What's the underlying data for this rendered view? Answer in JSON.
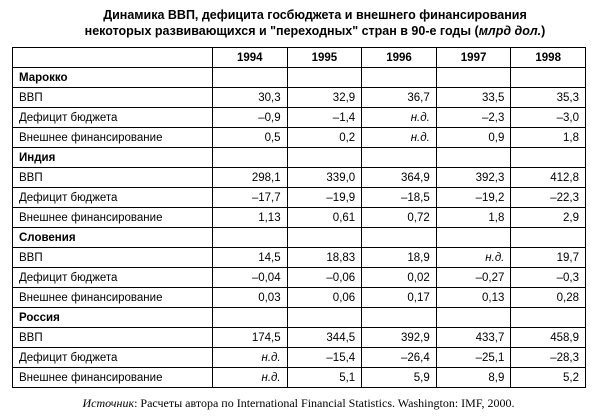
{
  "title": {
    "line1": "Динамика ВВП, дефицита госбюджета и внешнего финансирования",
    "line2_prefix": "некоторых развивающихся и \"переходных\" стран в 90-е годы (",
    "unit": "млрд дол.",
    "line2_suffix": ")"
  },
  "table": {
    "years": [
      "1994",
      "1995",
      "1996",
      "1997",
      "1998"
    ],
    "groups": [
      {
        "country": "Марокко",
        "rows": [
          {
            "label": "ВВП",
            "values": [
              "30,3",
              "32,9",
              "36,7",
              "33,5",
              "35,3"
            ]
          },
          {
            "label": "Дефицит бюджета",
            "values": [
              "–0,9",
              "–1,4",
              "н.д.",
              "–2,3",
              "–3,0"
            ]
          },
          {
            "label": "Внешнее финансирование",
            "values": [
              "0,5",
              "0,2",
              "н.д.",
              "0,9",
              "1,8"
            ]
          }
        ]
      },
      {
        "country": "Индия",
        "rows": [
          {
            "label": "ВВП",
            "values": [
              "298,1",
              "339,0",
              "364,9",
              "392,3",
              "412,8"
            ]
          },
          {
            "label": "Дефицит бюджета",
            "values": [
              "–17,7",
              "–19,9",
              "–18,5",
              "–19,2",
              "–22,3"
            ]
          },
          {
            "label": "Внешнее финансирование",
            "values": [
              "1,13",
              "0,61",
              "0,72",
              "1,8",
              "2,9"
            ]
          }
        ]
      },
      {
        "country": "Словения",
        "rows": [
          {
            "label": "ВВП",
            "values": [
              "14,5",
              "18,83",
              "18,9",
              "н.д.",
              "19,7"
            ]
          },
          {
            "label": "Дефицит бюджета",
            "values": [
              "–0,04",
              "–0,06",
              "0,02",
              "–0,27",
              "–0,3"
            ]
          },
          {
            "label": "Внешнее финансирование",
            "values": [
              "0,03",
              "0,06",
              "0,17",
              "0,13",
              "0,28"
            ]
          }
        ]
      },
      {
        "country": "Россия",
        "rows": [
          {
            "label": "ВВП",
            "values": [
              "174,5",
              "344,5",
              "392,9",
              "433,7",
              "458,9"
            ]
          },
          {
            "label": "Дефицит бюджета",
            "values": [
              "н.д.",
              "–15,4",
              "–26,4",
              "–25,1",
              "–28,3"
            ]
          },
          {
            "label": "Внешнее финансирование",
            "values": [
              "н.д.",
              "5,1",
              "5,9",
              "8,9",
              "5,2"
            ]
          }
        ]
      }
    ]
  },
  "source": {
    "label": "Источник",
    "text": ": Расчеты автора по International Financial Statistics. Washington: IMF, 2000."
  }
}
